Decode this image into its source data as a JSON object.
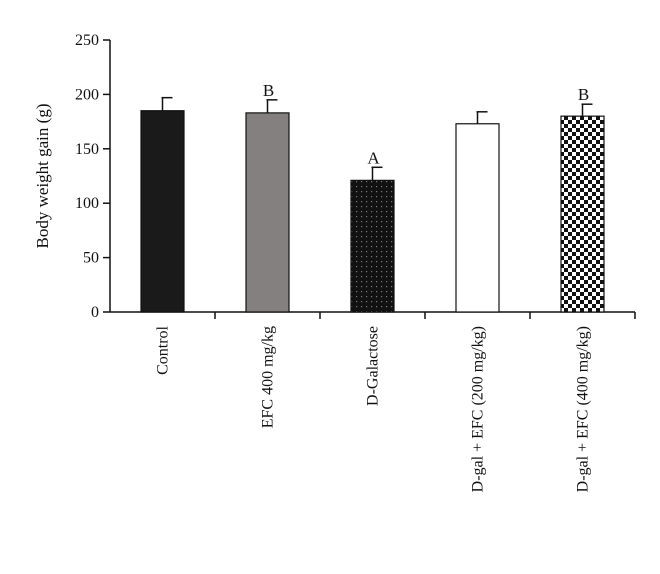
{
  "chart_data": {
    "type": "bar",
    "title": "",
    "xlabel": "",
    "ylabel": "Body weight gain (g)",
    "ylim": [
      0,
      250
    ],
    "yticks": [
      0,
      50,
      100,
      150,
      200,
      250
    ],
    "grid": false,
    "legend": "none",
    "categories": [
      "Control",
      "EFC 400 mg/kg",
      "D-Galactose",
      "D-gal + EFC (200 mg/kg)",
      "D-gal + EFC (400 mg/kg)"
    ],
    "values": [
      185,
      183,
      121,
      173,
      180
    ],
    "errors": [
      12,
      12,
      12,
      11,
      11
    ],
    "annotations": [
      "",
      "B",
      "A",
      "",
      "B"
    ],
    "bar_styles": [
      {
        "fill": "solid",
        "color": "#1a1a1a"
      },
      {
        "fill": "solid",
        "color": "#858080"
      },
      {
        "fill": "dotted",
        "color": "#111111"
      },
      {
        "fill": "open",
        "color": "#ffffff"
      },
      {
        "fill": "checker",
        "color": "#111111"
      }
    ]
  }
}
